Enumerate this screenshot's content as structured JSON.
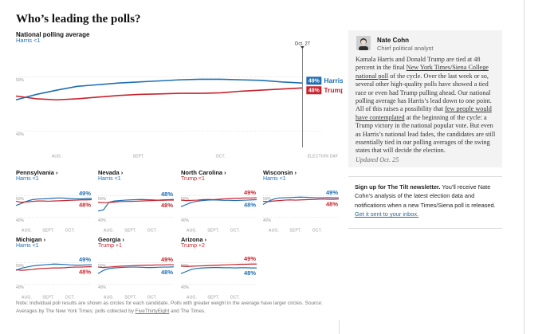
{
  "headline": "Who’s leading the polls?",
  "chart_data": [
    {
      "type": "line",
      "title": "National polling average",
      "subtitle": "Harris <1",
      "subtitle_color": "#1f6fb4",
      "annotation": "Oct. 27",
      "categories": [
        null,
        null,
        "AUG.",
        null,
        null,
        null,
        "SEPT.",
        null,
        null,
        null,
        "OCT.",
        null,
        null,
        null,
        null,
        "ELECTION DAY"
      ],
      "ylim": [
        37,
        56
      ],
      "yticks": [
        {
          "value": 50,
          "label": "50%"
        },
        {
          "value": 40,
          "label": "40%"
        }
      ],
      "grid": true,
      "series": [
        {
          "name": "Harris",
          "color": "#1f6fb4",
          "values": [
            45.8,
            46.8,
            47.6,
            48.3,
            48.6,
            48.9,
            49.1,
            49.3,
            49.5,
            49.6,
            49.6,
            49.5,
            49.4,
            49.1,
            48.9,
            null
          ],
          "value_labels": [
            null,
            null,
            null,
            null,
            null,
            null,
            null,
            null,
            null,
            null,
            null,
            null,
            null,
            null,
            "49%",
            null
          ]
        },
        {
          "name": "Trump",
          "color": "#c8222c",
          "values": [
            46.5,
            46.0,
            45.8,
            46.0,
            46.3,
            46.6,
            46.8,
            46.9,
            47.0,
            47.0,
            47.1,
            47.4,
            47.6,
            47.8,
            48.0,
            null
          ],
          "value_labels": [
            null,
            null,
            null,
            null,
            null,
            null,
            null,
            null,
            null,
            null,
            null,
            null,
            null,
            null,
            "48%",
            null
          ]
        }
      ]
    },
    {
      "type": "line",
      "title": "Pennsylvania ›",
      "subtitle": "Harris <1",
      "subtitle_color": "#1f6fb4",
      "categories": [
        null,
        null,
        "AUG.",
        null,
        null,
        null,
        "SEPT.",
        null,
        null,
        null,
        "OCT.",
        null,
        null,
        null,
        null
      ],
      "ylim": [
        37,
        55
      ],
      "yticks": [
        {
          "value": 50,
          "label": "50%"
        },
        {
          "value": 40,
          "label": "40%"
        }
      ],
      "grid": true,
      "series": [
        {
          "color": "#1f6fb4",
          "values": [
            45.5,
            46.5,
            47.5,
            48.2,
            48.5,
            48.6,
            48.7,
            48.9,
            49.0,
            48.9,
            48.7,
            48.6,
            48.6,
            48.7,
            48.8
          ],
          "value_labels": [
            null,
            null,
            null,
            null,
            null,
            null,
            null,
            null,
            null,
            null,
            null,
            null,
            null,
            null,
            "49%"
          ]
        },
        {
          "color": "#c8222c",
          "values": [
            47.5,
            47.0,
            47.2,
            47.4,
            47.6,
            47.6,
            47.5,
            47.6,
            47.7,
            47.8,
            47.9,
            48.0,
            48.1,
            48.1,
            48.2
          ],
          "value_labels": [
            null,
            null,
            null,
            null,
            null,
            null,
            null,
            null,
            null,
            null,
            null,
            null,
            null,
            null,
            "48%"
          ]
        }
      ]
    },
    {
      "type": "line",
      "title": "Nevada ›",
      "subtitle": "Harris <1",
      "subtitle_color": "#1f6fb4",
      "categories": [
        null,
        null,
        "AUG.",
        null,
        null,
        null,
        "SEPT.",
        null,
        null,
        null,
        "OCT.",
        null,
        null,
        null,
        null
      ],
      "ylim": [
        37,
        55
      ],
      "yticks": [
        {
          "value": 50,
          "label": "50%"
        },
        {
          "value": 40,
          "label": "40%"
        }
      ],
      "grid": true,
      "series": [
        {
          "color": "#1f6fb4",
          "values": [
            43.0,
            43.5,
            47.0,
            47.6,
            47.8,
            48.0,
            48.1,
            48.2,
            48.3,
            48.2,
            48.1,
            48.0,
            48.1,
            48.2,
            48.3
          ],
          "value_labels": [
            null,
            null,
            null,
            null,
            null,
            null,
            null,
            null,
            null,
            null,
            null,
            null,
            null,
            null,
            "48%"
          ]
        },
        {
          "color": "#c8222c",
          "values": [
            47.0,
            46.8,
            46.9,
            47.1,
            47.3,
            47.4,
            47.4,
            47.5,
            47.6,
            47.7,
            47.8,
            47.9,
            47.9,
            48.0,
            48.0
          ],
          "value_labels": [
            null,
            null,
            null,
            null,
            null,
            null,
            null,
            null,
            null,
            null,
            null,
            null,
            null,
            null,
            "48%"
          ]
        }
      ]
    },
    {
      "type": "line",
      "title": "North Carolina ›",
      "subtitle": "Trump <1",
      "subtitle_color": "#c8222c",
      "categories": [
        null,
        null,
        "AUG.",
        null,
        null,
        null,
        "SEPT.",
        null,
        null,
        null,
        "OCT.",
        null,
        null,
        null,
        null
      ],
      "ylim": [
        37,
        55
      ],
      "yticks": [
        {
          "value": 50,
          "label": "50%"
        },
        {
          "value": 40,
          "label": "40%"
        }
      ],
      "grid": true,
      "series": [
        {
          "color": "#1f6fb4",
          "values": [
            45.0,
            46.0,
            47.0,
            47.5,
            47.8,
            48.0,
            48.1,
            48.0,
            47.9,
            47.9,
            47.8,
            47.9,
            48.0,
            48.1,
            48.2
          ],
          "value_labels": [
            null,
            null,
            null,
            null,
            null,
            null,
            null,
            null,
            null,
            null,
            null,
            null,
            null,
            null,
            "48%"
          ]
        },
        {
          "color": "#c8222c",
          "values": [
            48.0,
            47.8,
            47.9,
            48.0,
            48.2,
            48.3,
            48.2,
            48.4,
            48.6,
            48.7,
            48.8,
            48.9,
            49.0,
            49.0,
            49.1
          ],
          "value_labels": [
            null,
            null,
            null,
            null,
            null,
            null,
            null,
            null,
            null,
            null,
            null,
            null,
            null,
            null,
            "49%"
          ]
        }
      ]
    },
    {
      "type": "line",
      "title": "Wisconsin ›",
      "subtitle": "Harris <1",
      "subtitle_color": "#1f6fb4",
      "categories": [
        null,
        null,
        "AUG.",
        null,
        null,
        null,
        "SEPT.",
        null,
        null,
        null,
        "OCT.",
        null,
        null,
        null,
        null
      ],
      "ylim": [
        37,
        55
      ],
      "yticks": [
        {
          "value": 50,
          "label": "50%"
        },
        {
          "value": 40,
          "label": "40%"
        }
      ],
      "grid": true,
      "series": [
        {
          "color": "#1f6fb4",
          "values": [
            46.0,
            47.5,
            48.5,
            49.0,
            49.1,
            49.2,
            49.3,
            49.4,
            49.3,
            49.2,
            49.1,
            49.1,
            49.2,
            49.1,
            49.1
          ],
          "value_labels": [
            null,
            null,
            null,
            null,
            null,
            null,
            null,
            null,
            null,
            null,
            null,
            null,
            null,
            null,
            "49%"
          ]
        },
        {
          "color": "#c8222c",
          "values": [
            47.5,
            47.3,
            47.6,
            47.8,
            48.0,
            48.1,
            48.0,
            48.1,
            48.2,
            48.3,
            48.4,
            48.5,
            48.4,
            48.4,
            48.5
          ],
          "value_labels": [
            null,
            null,
            null,
            null,
            null,
            null,
            null,
            null,
            null,
            null,
            null,
            null,
            null,
            null,
            "48%"
          ]
        }
      ]
    },
    {
      "type": "line",
      "title": "Michigan ›",
      "subtitle": "Harris <1",
      "subtitle_color": "#1f6fb4",
      "categories": [
        null,
        null,
        "AUG.",
        null,
        null,
        null,
        "SEPT.",
        null,
        null,
        null,
        "OCT.",
        null,
        null,
        null,
        null
      ],
      "ylim": [
        37,
        55
      ],
      "yticks": [
        {
          "value": 50,
          "label": "50%"
        },
        {
          "value": 40,
          "label": "40%"
        }
      ],
      "grid": true,
      "series": [
        {
          "color": "#1f6fb4",
          "values": [
            46.5,
            47.5,
            48.0,
            48.5,
            48.8,
            49.0,
            49.2,
            49.4,
            49.3,
            49.2,
            49.0,
            48.9,
            48.9,
            49.0,
            49.1
          ],
          "value_labels": [
            null,
            null,
            null,
            null,
            null,
            null,
            null,
            null,
            null,
            null,
            null,
            null,
            null,
            null,
            "49%"
          ]
        },
        {
          "color": "#c8222c",
          "values": [
            46.8,
            46.5,
            46.7,
            46.9,
            47.2,
            47.4,
            47.5,
            47.6,
            47.6,
            47.7,
            47.9,
            48.0,
            48.0,
            48.1,
            48.2
          ],
          "value_labels": [
            null,
            null,
            null,
            null,
            null,
            null,
            null,
            null,
            null,
            null,
            null,
            null,
            null,
            null,
            "48%"
          ]
        }
      ]
    },
    {
      "type": "line",
      "title": "Georgia ›",
      "subtitle": "Trump +1",
      "subtitle_color": "#c8222c",
      "categories": [
        null,
        null,
        "AUG.",
        null,
        null,
        null,
        "SEPT.",
        null,
        null,
        null,
        "OCT.",
        null,
        null,
        null,
        null
      ],
      "ylim": [
        37,
        55
      ],
      "yticks": [
        {
          "value": 50,
          "label": "50%"
        },
        {
          "value": 40,
          "label": "40%"
        }
      ],
      "grid": true,
      "series": [
        {
          "color": "#1f6fb4",
          "values": [
            45.0,
            46.5,
            47.3,
            47.6,
            47.8,
            47.9,
            48.0,
            48.0,
            47.9,
            47.8,
            47.8,
            47.9,
            48.0,
            48.0,
            48.1
          ],
          "value_labels": [
            null,
            null,
            null,
            null,
            null,
            null,
            null,
            null,
            null,
            null,
            null,
            null,
            null,
            null,
            "48%"
          ]
        },
        {
          "color": "#c8222c",
          "values": [
            48.0,
            47.8,
            48.0,
            48.2,
            48.4,
            48.5,
            48.6,
            48.7,
            48.8,
            48.9,
            48.9,
            49.0,
            49.0,
            49.1,
            49.1
          ],
          "value_labels": [
            null,
            null,
            null,
            null,
            null,
            null,
            null,
            null,
            null,
            null,
            null,
            null,
            null,
            null,
            "49%"
          ]
        }
      ]
    },
    {
      "type": "line",
      "title": "Arizona ›",
      "subtitle": "Trump +2",
      "subtitle_color": "#c8222c",
      "categories": [
        null,
        null,
        "AUG.",
        null,
        null,
        null,
        "SEPT.",
        null,
        null,
        null,
        "OCT.",
        null,
        null,
        null,
        null
      ],
      "ylim": [
        37,
        55
      ],
      "yticks": [
        {
          "value": 50,
          "label": "50%"
        },
        {
          "value": 40,
          "label": "40%"
        }
      ],
      "grid": true,
      "series": [
        {
          "color": "#1f6fb4",
          "values": [
            45.0,
            46.0,
            47.0,
            47.4,
            47.6,
            47.7,
            47.8,
            47.8,
            47.7,
            47.7,
            47.6,
            47.7,
            47.7,
            47.6,
            47.6
          ],
          "value_labels": [
            null,
            null,
            null,
            null,
            null,
            null,
            null,
            null,
            null,
            null,
            null,
            null,
            null,
            null,
            "48%"
          ]
        },
        {
          "color": "#c8222c",
          "values": [
            48.5,
            48.3,
            48.4,
            48.5,
            48.6,
            48.7,
            48.8,
            48.9,
            49.0,
            49.1,
            49.2,
            49.3,
            49.3,
            49.4,
            49.4
          ],
          "value_labels": [
            null,
            null,
            null,
            null,
            null,
            null,
            null,
            null,
            null,
            null,
            null,
            null,
            null,
            null,
            "49%"
          ]
        }
      ]
    }
  ],
  "sidebar": {
    "name": "Nate Cohn",
    "role": "Chief political analyst",
    "body": [
      {
        "text": "Kamala Harris and Donald Trump are tied at 48 percent in the final "
      },
      {
        "text": "New York Times/Siena College national poll",
        "link": true
      },
      {
        "text": " of the cycle. Over the last week or so, several other high-quality polls have showed a tied race or even had Trump pulling ahead. Our national polling average has Harris’s lead down to one point. All of this raises a possibility that "
      },
      {
        "text": "few people would have contemplated",
        "link": true
      },
      {
        "text": " at the beginning of the cycle: a Trump victory in the national popular vote. But even as Harris’s national lead fades, the candidates are still essentially tied in our polling averages of the swing states that will decide the election."
      }
    ],
    "updated": "Updated Oct. 25"
  },
  "newsletter": [
    {
      "text": "Sign up for The Tilt newsletter.",
      "bold": true
    },
    {
      "text": " You’ll receive Nate Cohn’s analysis of the latest election data and notifications when a new Times/Siena poll is released. "
    },
    {
      "text": "Get it sent to your inbox.",
      "link": true
    }
  ],
  "note": [
    {
      "text": "Note: Individual poll results are shown as circles for each candidate. Polls with greater weight in the average have larger circles. Source: Averages by The New York Times; polls collected by "
    },
    {
      "text": "FiveThirtyEight",
      "link": true
    },
    {
      "text": " and The Times."
    }
  ]
}
